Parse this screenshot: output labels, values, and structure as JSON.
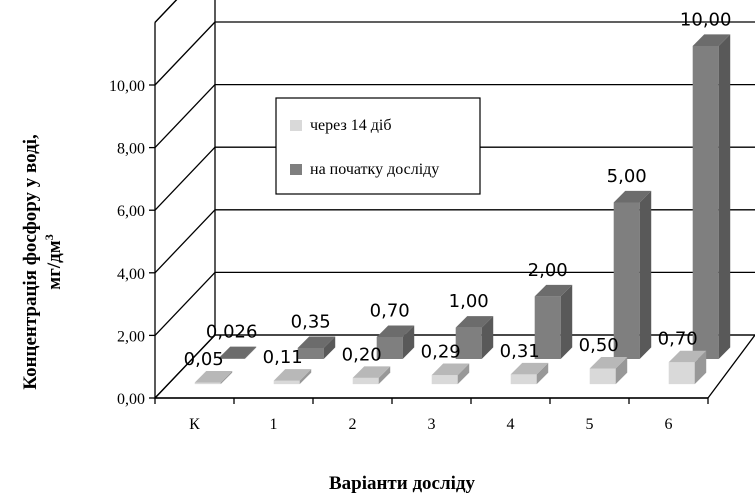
{
  "chart_data": {
    "type": "bar",
    "categories": [
      "К",
      "1",
      "2",
      "3",
      "4",
      "5",
      "6"
    ],
    "series": [
      {
        "name": "через 14 діб",
        "values": [
          0.05,
          0.11,
          0.2,
          0.29,
          0.31,
          0.5,
          0.7
        ],
        "labels": [
          "0,05",
          "0,11",
          "0,20",
          "0,29",
          "0,31",
          "0,50",
          "0,70"
        ],
        "color": "#d9d9d9"
      },
      {
        "name": "на початку досліду",
        "values": [
          0.026,
          0.35,
          0.7,
          1.0,
          2.0,
          5.0,
          10.0
        ],
        "labels": [
          "0,026",
          "0,35",
          "0,70",
          "1,00",
          "2,00",
          "5,00",
          "10,00"
        ],
        "color": "#7f7f7f"
      }
    ],
    "ylim": [
      0,
      10
    ],
    "yticks": [
      "0,00",
      "2,00",
      "4,00",
      "6,00",
      "8,00",
      "10,00"
    ],
    "ylabel_line1": "Концентрація фосфору у воді,",
    "ylabel_line2": "мг/дм",
    "ylabel_sup": "3",
    "xlabel": "Варіанти досліду",
    "grid": true,
    "legend_position": "top-center"
  }
}
